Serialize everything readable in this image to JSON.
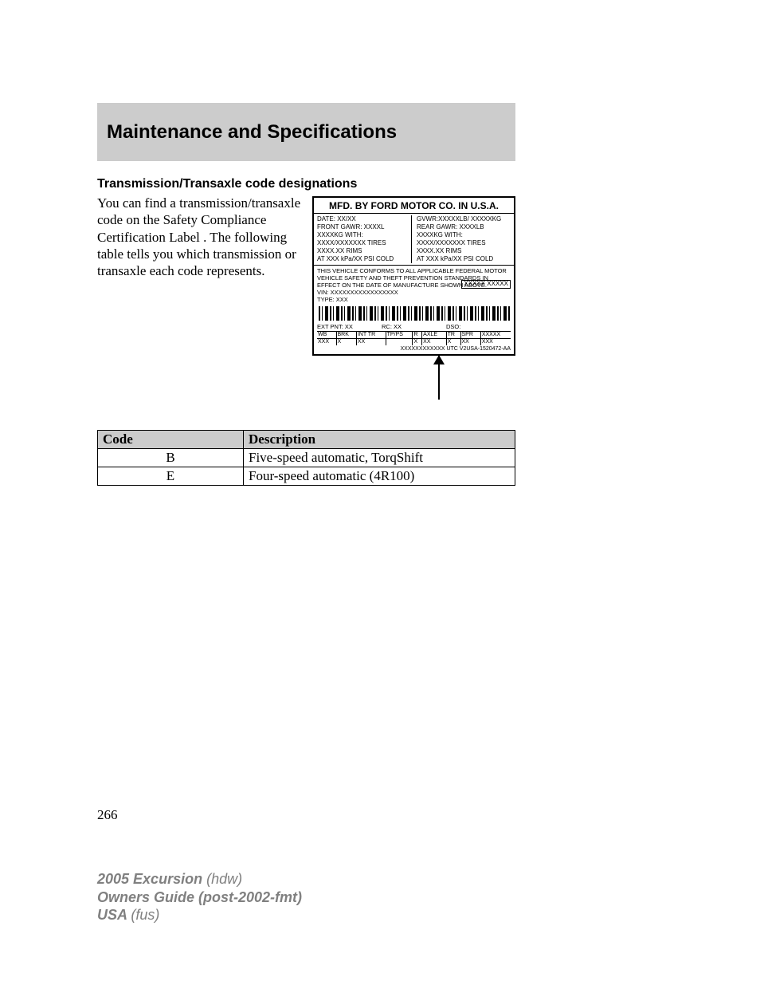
{
  "section_title": "Maintenance and Specifications",
  "subheading": "Transmission/Transaxle code designations",
  "body_text": "You can find a transmission/transaxle code on the Safety Compliance Certification Label . The following table tells you which transmission or transaxle each code represents.",
  "label": {
    "title": "MFD. BY FORD MOTOR CO. IN U.S.A.",
    "top_left": [
      "DATE: XX/XX",
      "FRONT GAWR: XXXXL",
      "  XXXXKG            WITH:",
      "  XXXX/XXXXXXX    TIRES",
      "  XXXX.XX             RIMS",
      "AT XXX kPa/XX   PSI COLD"
    ],
    "top_right": [
      "GVWR:XXXXXLB/ XXXXXKG",
      "  REAR GAWR:    XXXXLB",
      "  XXXXKG            WITH:",
      "  XXXX/XXXXXXX    TIRES",
      "  XXXX.XX             RIMS",
      "AT XXX kPa/XX   PSI COLD"
    ],
    "compliance": "THIS VEHICLE CONFORMS TO ALL APPLICABLE FEDERAL MOTOR VEHICLE SAFETY AND THEFT PREVENTION STANDARDS IN EFFECT ON THE DATE OF MANUFACTURE SHOWN ABOVE.",
    "vin": "VIN:   XXXXXXXXXXXXXXXXX",
    "type": "TYPE:  XXX",
    "sidebox": "XXXXX\nXXXXX",
    "row1_left": "EXT PNT:    XX",
    "row1_mid": "RC: XX",
    "row1_right": "DSO:",
    "grid_headers": [
      "WB",
      "BRK",
      "INT TR",
      "TP/PS",
      "R",
      "AXLE",
      "TR",
      "SPR",
      "XXXXX"
    ],
    "grid_values": [
      "XXX",
      "X",
      "XX",
      "",
      "X",
      "XX",
      "X",
      "XX",
      "XXX"
    ],
    "lastline": "XXXXXXXXXXXX UTC  V2USA-1520472-AA"
  },
  "table": {
    "headers": [
      "Code",
      "Description"
    ],
    "rows": [
      [
        "B",
        "Five-speed automatic, TorqShift"
      ],
      [
        "E",
        "Four-speed automatic (4R100)"
      ]
    ]
  },
  "page_number": "266",
  "footer": {
    "line1_bold": "2005 Excursion ",
    "line1_paren": "(hdw)",
    "line2_bold": "Owners Guide (post-2002-fmt)",
    "line3_bold": "USA ",
    "line3_paren": "(fus)"
  }
}
